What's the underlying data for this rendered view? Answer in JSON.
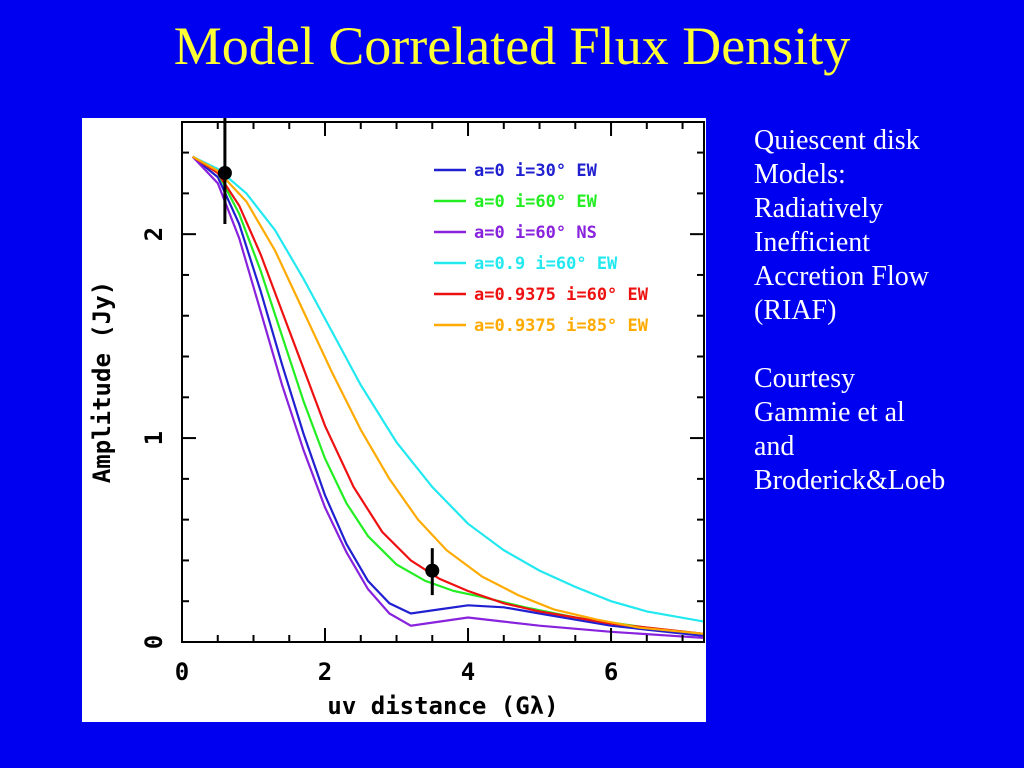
{
  "slide": {
    "title": "Model Correlated Flux Density",
    "side_text": {
      "paragraph1": [
        "Quiescent disk",
        "Models:",
        "Radiatively",
        "Inefficient",
        "Accretion Flow",
        "(RIAF)"
      ],
      "paragraph2": [
        "Courtesy",
        "Gammie et al",
        "and",
        "Broderick&Loeb"
      ]
    },
    "colors": {
      "background": "#0000f0",
      "title": "#ffff33",
      "text": "#ffffff"
    }
  },
  "chart_data": {
    "type": "line",
    "title": "",
    "xlabel": "uv distance (Gλ)",
    "ylabel": "Amplitude (Jy)",
    "xlim": [
      0,
      7.3
    ],
    "ylim": [
      0,
      2.55
    ],
    "x_ticks": [
      0,
      2,
      4,
      6
    ],
    "y_ticks": [
      0,
      1,
      2
    ],
    "grid": false,
    "legend_position": "top-right",
    "series": [
      {
        "name": "a=0 i=30° EW",
        "color": "#2020d0",
        "x": [
          0.15,
          0.5,
          0.8,
          1.1,
          1.4,
          1.7,
          2.0,
          2.3,
          2.6,
          2.9,
          3.2,
          3.6,
          4.0,
          4.5,
          5.0,
          6.0,
          7.3
        ],
        "y": [
          2.38,
          2.28,
          2.05,
          1.72,
          1.36,
          1.02,
          0.72,
          0.48,
          0.3,
          0.19,
          0.14,
          0.16,
          0.18,
          0.17,
          0.14,
          0.08,
          0.03
        ]
      },
      {
        "name": "a=0 i=60° EW",
        "color": "#22ee22",
        "x": [
          0.15,
          0.5,
          0.8,
          1.1,
          1.4,
          1.7,
          2.0,
          2.3,
          2.6,
          3.0,
          3.4,
          3.8,
          4.2,
          4.8,
          5.5,
          6.5,
          7.3
        ],
        "y": [
          2.38,
          2.3,
          2.1,
          1.82,
          1.5,
          1.18,
          0.9,
          0.68,
          0.52,
          0.38,
          0.3,
          0.25,
          0.22,
          0.17,
          0.12,
          0.07,
          0.04
        ]
      },
      {
        "name": "a=0 i=60° NS",
        "color": "#8822dd",
        "x": [
          0.15,
          0.5,
          0.8,
          1.1,
          1.4,
          1.7,
          2.0,
          2.3,
          2.6,
          2.9,
          3.2,
          3.6,
          4.0,
          4.5,
          5.0,
          6.0,
          7.3
        ],
        "y": [
          2.38,
          2.25,
          1.98,
          1.62,
          1.26,
          0.94,
          0.66,
          0.44,
          0.26,
          0.14,
          0.08,
          0.1,
          0.12,
          0.1,
          0.08,
          0.05,
          0.02
        ]
      },
      {
        "name": "a=0.9 i=60° EW",
        "color": "#22e8f0",
        "x": [
          0.15,
          0.5,
          0.9,
          1.3,
          1.7,
          2.1,
          2.5,
          3.0,
          3.5,
          4.0,
          4.5,
          5.0,
          5.5,
          6.0,
          6.5,
          7.3
        ],
        "y": [
          2.38,
          2.32,
          2.2,
          2.02,
          1.78,
          1.52,
          1.26,
          0.98,
          0.76,
          0.58,
          0.45,
          0.35,
          0.27,
          0.2,
          0.15,
          0.1
        ]
      },
      {
        "name": "a=0.9375 i=60° EW",
        "color": "#ee1111",
        "x": [
          0.15,
          0.5,
          0.8,
          1.1,
          1.4,
          1.7,
          2.0,
          2.4,
          2.8,
          3.2,
          3.6,
          4.0,
          4.5,
          5.0,
          5.5,
          6.0,
          7.3
        ],
        "y": [
          2.38,
          2.3,
          2.14,
          1.9,
          1.62,
          1.34,
          1.06,
          0.76,
          0.54,
          0.4,
          0.31,
          0.25,
          0.19,
          0.15,
          0.12,
          0.09,
          0.04
        ]
      },
      {
        "name": "a=0.9375 i=85° EW",
        "color": "#ffaa00",
        "x": [
          0.15,
          0.5,
          0.9,
          1.3,
          1.7,
          2.1,
          2.5,
          2.9,
          3.3,
          3.7,
          4.2,
          4.7,
          5.2,
          5.8,
          6.4,
          7.3
        ],
        "y": [
          2.38,
          2.31,
          2.16,
          1.92,
          1.62,
          1.32,
          1.04,
          0.8,
          0.6,
          0.45,
          0.32,
          0.23,
          0.16,
          0.11,
          0.07,
          0.04
        ]
      }
    ],
    "observations": {
      "color": "#000000",
      "points": [
        {
          "x": 0.6,
          "y": 2.3,
          "yerr_low": 2.05,
          "yerr_high": 2.57
        },
        {
          "x": 3.5,
          "y": 0.35,
          "yerr_low": 0.23,
          "yerr_high": 0.46
        }
      ]
    }
  }
}
